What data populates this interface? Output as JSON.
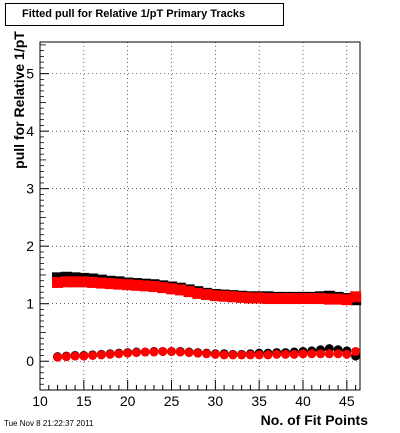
{
  "chart_data": {
    "type": "scatter",
    "title": "Fitted pull for Relative 1/pT Primary Tracks",
    "xlabel": "No. of Fit Points",
    "ylabel": "pull for Relative 1/pT",
    "xlim": [
      10,
      46.5
    ],
    "ylim": [
      -0.5,
      5.55
    ],
    "xticks": [
      10,
      15,
      20,
      25,
      30,
      35,
      40,
      45
    ],
    "yticks": [
      0,
      1,
      2,
      3,
      4,
      5
    ],
    "grid": true,
    "legend": "none",
    "series": [
      {
        "color": "#000000",
        "marker": "square",
        "x": [
          12,
          13,
          14,
          15,
          16,
          17,
          18,
          19,
          20,
          21,
          22,
          23,
          24,
          25,
          26,
          27,
          28,
          29,
          30,
          31,
          32,
          33,
          34,
          35,
          36,
          37,
          38,
          39,
          40,
          41,
          42,
          43,
          44,
          45,
          46
        ],
        "y": [
          1.45,
          1.46,
          1.45,
          1.44,
          1.43,
          1.41,
          1.39,
          1.38,
          1.36,
          1.35,
          1.34,
          1.33,
          1.31,
          1.29,
          1.27,
          1.24,
          1.21,
          1.18,
          1.16,
          1.15,
          1.14,
          1.13,
          1.12,
          1.12,
          1.12,
          1.11,
          1.11,
          1.11,
          1.11,
          1.11,
          1.12,
          1.13,
          1.11,
          1.09,
          1.07
        ]
      },
      {
        "color": "#ff0000",
        "marker": "square",
        "x": [
          12,
          13,
          14,
          15,
          16,
          17,
          18,
          19,
          20,
          21,
          22,
          23,
          24,
          25,
          26,
          27,
          28,
          29,
          30,
          31,
          32,
          33,
          34,
          35,
          36,
          37,
          38,
          39,
          40,
          41,
          42,
          43,
          44,
          45,
          46
        ],
        "y": [
          1.37,
          1.38,
          1.38,
          1.38,
          1.37,
          1.36,
          1.35,
          1.34,
          1.33,
          1.32,
          1.31,
          1.3,
          1.28,
          1.26,
          1.24,
          1.21,
          1.18,
          1.16,
          1.14,
          1.13,
          1.12,
          1.11,
          1.1,
          1.1,
          1.09,
          1.09,
          1.09,
          1.09,
          1.09,
          1.09,
          1.09,
          1.08,
          1.08,
          1.07,
          1.12
        ]
      },
      {
        "color": "#000000",
        "marker": "circle",
        "x": [
          12,
          13,
          14,
          15,
          16,
          17,
          18,
          19,
          20,
          21,
          22,
          23,
          24,
          25,
          26,
          27,
          28,
          29,
          30,
          31,
          32,
          33,
          34,
          35,
          36,
          37,
          38,
          39,
          40,
          41,
          42,
          43,
          44,
          45,
          46
        ],
        "y": [
          0.08,
          0.09,
          0.1,
          0.1,
          0.11,
          0.12,
          0.13,
          0.14,
          0.15,
          0.16,
          0.16,
          0.17,
          0.17,
          0.17,
          0.17,
          0.16,
          0.15,
          0.14,
          0.13,
          0.13,
          0.12,
          0.12,
          0.13,
          0.14,
          0.14,
          0.15,
          0.15,
          0.16,
          0.17,
          0.18,
          0.2,
          0.22,
          0.2,
          0.18,
          0.09
        ]
      },
      {
        "color": "#ff0000",
        "marker": "circle",
        "x": [
          12,
          13,
          14,
          15,
          16,
          17,
          18,
          19,
          20,
          21,
          22,
          23,
          24,
          25,
          26,
          27,
          28,
          29,
          30,
          31,
          32,
          33,
          34,
          35,
          36,
          37,
          38,
          39,
          40,
          41,
          42,
          43,
          44,
          45,
          46
        ],
        "y": [
          0.07,
          0.08,
          0.09,
          0.09,
          0.1,
          0.11,
          0.12,
          0.13,
          0.14,
          0.15,
          0.16,
          0.16,
          0.17,
          0.17,
          0.16,
          0.15,
          0.14,
          0.13,
          0.12,
          0.11,
          0.11,
          0.11,
          0.11,
          0.11,
          0.11,
          0.12,
          0.12,
          0.12,
          0.13,
          0.13,
          0.13,
          0.13,
          0.13,
          0.12,
          0.17
        ]
      }
    ]
  },
  "footer": {
    "timestamp": "Tue Nov  8 21:22:37 2011"
  }
}
